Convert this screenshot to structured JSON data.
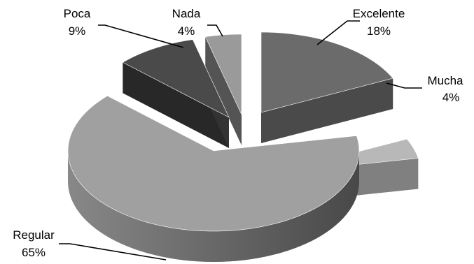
{
  "chart_data": {
    "type": "pie",
    "style": "3d-exploded",
    "labels": [
      "Excelente",
      "Mucha",
      "Regular",
      "Poca",
      "Nada"
    ],
    "values": [
      18,
      4,
      65,
      9,
      4
    ],
    "value_labels": [
      "18%",
      "4%",
      "65%",
      "9%",
      "4%"
    ],
    "colors": {
      "Excelente": "#6b6b6b",
      "Mucha": "#b8b8b8",
      "Regular": "#a0a0a0",
      "Poca": "#4a4a4a",
      "Nada": "#9a9a9a"
    },
    "legend": "none"
  }
}
